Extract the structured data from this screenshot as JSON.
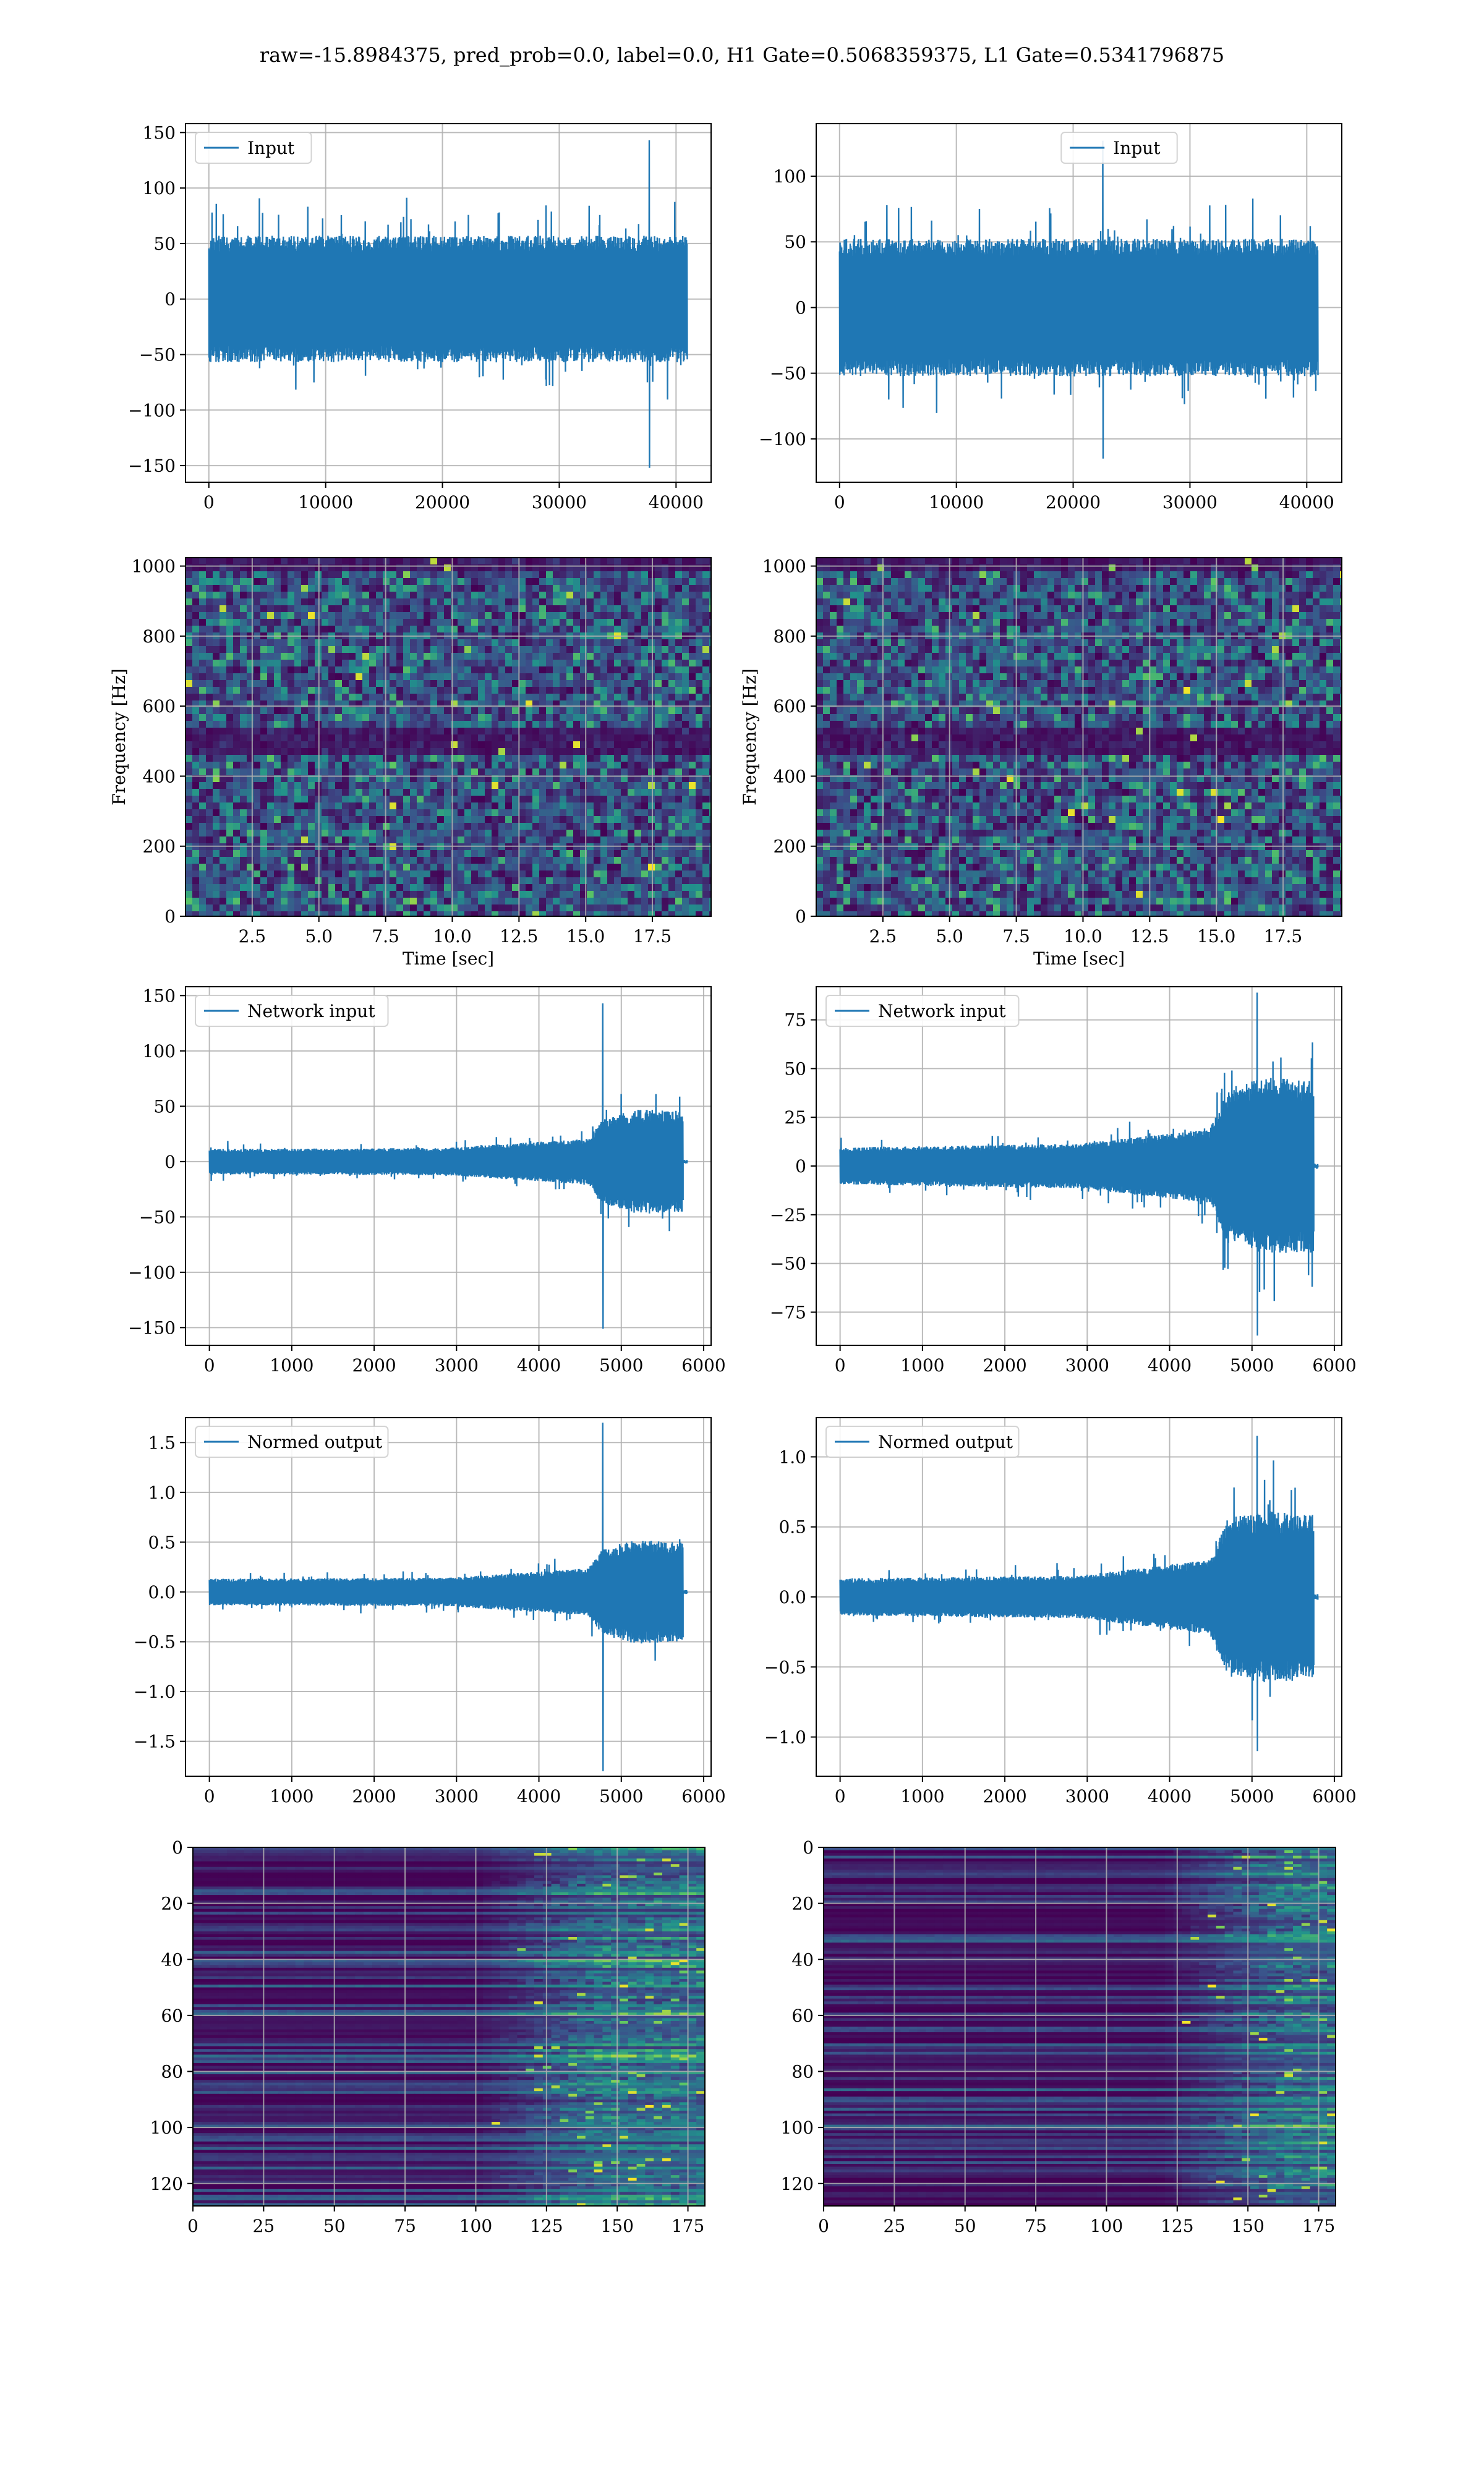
{
  "figure_title": "raw=-15.8984375, pred_prob=0.0, label=0.0, H1 Gate=0.5068359375, L1 Gate=0.5341796875",
  "colors": {
    "line": "#1f77b4",
    "grid": "#b0b0b0",
    "viridis": [
      "#440154",
      "#3b528b",
      "#21918c",
      "#5ec962",
      "#fde725"
    ]
  },
  "chart_data": [
    {
      "id": "input_h1",
      "type": "line",
      "legend_loc": "upper-left",
      "series": [
        {
          "name": "Input"
        }
      ],
      "xlim": [
        -2000,
        43000
      ],
      "ylim": [
        -165,
        158
      ],
      "xticks": [
        0,
        10000,
        20000,
        30000,
        40000
      ],
      "xtick_labels": [
        "0",
        "10000",
        "20000",
        "30000",
        "40000"
      ],
      "yticks": [
        -150,
        -100,
        -50,
        0,
        50,
        100,
        150
      ],
      "ytick_labels": [
        "−150",
        "−100",
        "−50",
        "0",
        "50",
        "100",
        "150"
      ],
      "signal": {
        "x_start": 0,
        "x_end": 40960,
        "envelope": [
          [
            0,
            60
          ],
          [
            1,
            60
          ]
        ],
        "peak_max": 143,
        "peak_min": -152,
        "peak_at": 0.92
      }
    },
    {
      "id": "input_l1",
      "type": "line",
      "legend_loc": "upper-center",
      "series": [
        {
          "name": "Input"
        }
      ],
      "xlim": [
        -2000,
        43000
      ],
      "ylim": [
        -133,
        140
      ],
      "xticks": [
        0,
        10000,
        20000,
        30000,
        40000
      ],
      "xtick_labels": [
        "0",
        "10000",
        "20000",
        "30000",
        "40000"
      ],
      "yticks": [
        -100,
        -50,
        0,
        50,
        100
      ],
      "ytick_labels": [
        "−100",
        "−50",
        "0",
        "50",
        "100"
      ],
      "signal": {
        "x_start": 0,
        "x_end": 40960,
        "envelope": [
          [
            0,
            55
          ],
          [
            1,
            55
          ]
        ],
        "peak_max": 127,
        "peak_min": -115,
        "peak_at": 0.55
      }
    },
    {
      "id": "spec_h1",
      "type": "heatmap",
      "xlabel": "Time [sec]",
      "ylabel": "Frequency [Hz]",
      "xlim": [
        0,
        19.7
      ],
      "ylim": [
        0,
        1024
      ],
      "xticks": [
        2.5,
        5.0,
        7.5,
        10.0,
        12.5,
        15.0,
        17.5
      ],
      "xtick_labels": [
        "2.5",
        "5.0",
        "7.5",
        "10.0",
        "12.5",
        "15.0",
        "17.5"
      ],
      "yticks": [
        0,
        200,
        400,
        600,
        800,
        1000
      ],
      "ytick_labels": [
        "0",
        "200",
        "400",
        "600",
        "800",
        "1000"
      ]
    },
    {
      "id": "spec_l1",
      "type": "heatmap",
      "xlabel": "Time [sec]",
      "ylabel": "Frequency [Hz]",
      "xlim": [
        0,
        19.7
      ],
      "ylim": [
        0,
        1024
      ],
      "xticks": [
        2.5,
        5.0,
        7.5,
        10.0,
        12.5,
        15.0,
        17.5
      ],
      "xtick_labels": [
        "2.5",
        "5.0",
        "7.5",
        "10.0",
        "12.5",
        "15.0",
        "17.5"
      ],
      "yticks": [
        0,
        200,
        400,
        600,
        800,
        1000
      ],
      "ytick_labels": [
        "0",
        "200",
        "400",
        "600",
        "800",
        "1000"
      ]
    },
    {
      "id": "network_input_h1",
      "type": "line",
      "legend_loc": "upper-left",
      "series": [
        {
          "name": "Network input"
        }
      ],
      "xlim": [
        -290,
        6090
      ],
      "ylim": [
        -166,
        158
      ],
      "xticks": [
        0,
        1000,
        2000,
        3000,
        4000,
        5000,
        6000
      ],
      "xtick_labels": [
        "0",
        "1000",
        "2000",
        "3000",
        "4000",
        "5000",
        "6000"
      ],
      "yticks": [
        -150,
        -100,
        -50,
        0,
        50,
        100,
        150
      ],
      "ytick_labels": [
        "−150",
        "−100",
        "−50",
        "0",
        "50",
        "100",
        "150"
      ],
      "signal": {
        "x_start": 0,
        "x_end": 5750,
        "tail_end": 5800,
        "envelope": [
          [
            0,
            12
          ],
          [
            0.5,
            13
          ],
          [
            0.8,
            22
          ],
          [
            0.83,
            40
          ],
          [
            0.9,
            50
          ],
          [
            1,
            48
          ]
        ],
        "peak_max": 143,
        "peak_min": -151,
        "peak_at": 0.83
      }
    },
    {
      "id": "network_input_l1",
      "type": "line",
      "legend_loc": "upper-left",
      "series": [
        {
          "name": "Network input"
        }
      ],
      "xlim": [
        -290,
        6090
      ],
      "ylim": [
        -92,
        92
      ],
      "xticks": [
        0,
        1000,
        2000,
        3000,
        4000,
        5000,
        6000
      ],
      "xtick_labels": [
        "0",
        "1000",
        "2000",
        "3000",
        "4000",
        "5000",
        "6000"
      ],
      "yticks": [
        -75,
        -50,
        -25,
        0,
        25,
        50,
        75
      ],
      "ytick_labels": [
        "−75",
        "−50",
        "−25",
        "0",
        "25",
        "50",
        "75"
      ],
      "signal": {
        "x_start": 0,
        "x_end": 5750,
        "tail_end": 5800,
        "envelope": [
          [
            0,
            10
          ],
          [
            0.5,
            12
          ],
          [
            0.78,
            20
          ],
          [
            0.82,
            42
          ],
          [
            0.9,
            48
          ],
          [
            1,
            46
          ]
        ],
        "peak_max": 89,
        "peak_min": -87,
        "peak_at": 0.88
      }
    },
    {
      "id": "normed_output_h1",
      "type": "line",
      "legend_loc": "upper-left",
      "series": [
        {
          "name": "Normed output"
        }
      ],
      "xlim": [
        -290,
        6090
      ],
      "ylim": [
        -1.85,
        1.75
      ],
      "xticks": [
        0,
        1000,
        2000,
        3000,
        4000,
        5000,
        6000
      ],
      "xtick_labels": [
        "0",
        "1000",
        "2000",
        "3000",
        "4000",
        "5000",
        "6000"
      ],
      "yticks": [
        -1.5,
        -1.0,
        -0.5,
        0.0,
        0.5,
        1.0,
        1.5
      ],
      "ytick_labels": [
        "−1.5",
        "−1.0",
        "−0.5",
        "0.0",
        "0.5",
        "1.0",
        "1.5"
      ],
      "signal": {
        "x_start": 0,
        "x_end": 5750,
        "tail_end": 5800,
        "envelope": [
          [
            0,
            0.14
          ],
          [
            0.5,
            0.15
          ],
          [
            0.8,
            0.25
          ],
          [
            0.83,
            0.45
          ],
          [
            0.9,
            0.55
          ],
          [
            1,
            0.52
          ]
        ],
        "peak_max": 1.7,
        "peak_min": -1.8,
        "peak_at": 0.83
      }
    },
    {
      "id": "normed_output_l1",
      "type": "line",
      "legend_loc": "upper-left",
      "series": [
        {
          "name": "Normed output"
        }
      ],
      "xlim": [
        -290,
        6090
      ],
      "ylim": [
        -1.28,
        1.28
      ],
      "xticks": [
        0,
        1000,
        2000,
        3000,
        4000,
        5000,
        6000
      ],
      "xtick_labels": [
        "0",
        "1000",
        "2000",
        "3000",
        "4000",
        "5000",
        "6000"
      ],
      "yticks": [
        -1.0,
        -0.5,
        0.0,
        0.5,
        1.0
      ],
      "ytick_labels": [
        "−1.0",
        "−0.5",
        "0.0",
        "0.5",
        "1.0"
      ],
      "signal": {
        "x_start": 0,
        "x_end": 5750,
        "tail_end": 5800,
        "envelope": [
          [
            0,
            0.14
          ],
          [
            0.5,
            0.16
          ],
          [
            0.78,
            0.28
          ],
          [
            0.82,
            0.6
          ],
          [
            0.9,
            0.65
          ],
          [
            1,
            0.62
          ]
        ],
        "peak_max": 1.15,
        "peak_min": -1.1,
        "peak_at": 0.88
      }
    },
    {
      "id": "feature_map_h1",
      "type": "heatmap",
      "xlim": [
        0,
        181
      ],
      "ylim": [
        128,
        0
      ],
      "xticks": [
        0,
        25,
        50,
        75,
        100,
        125,
        150,
        175
      ],
      "xtick_labels": [
        "0",
        "25",
        "50",
        "75",
        "100",
        "125",
        "150",
        "175"
      ],
      "yticks": [
        0,
        20,
        40,
        60,
        80,
        100,
        120
      ],
      "ytick_labels": [
        "0",
        "20",
        "40",
        "60",
        "80",
        "100",
        "120"
      ],
      "activation_onset": 100
    },
    {
      "id": "feature_map_l1",
      "type": "heatmap",
      "xlim": [
        0,
        181
      ],
      "ylim": [
        128,
        0
      ],
      "xticks": [
        0,
        25,
        50,
        75,
        100,
        125,
        150,
        175
      ],
      "xtick_labels": [
        "0",
        "25",
        "50",
        "75",
        "100",
        "125",
        "150",
        "175"
      ],
      "yticks": [
        0,
        20,
        40,
        60,
        80,
        100,
        120
      ],
      "ytick_labels": [
        "0",
        "20",
        "40",
        "60",
        "80",
        "100",
        "120"
      ],
      "activation_onset": 120
    }
  ]
}
